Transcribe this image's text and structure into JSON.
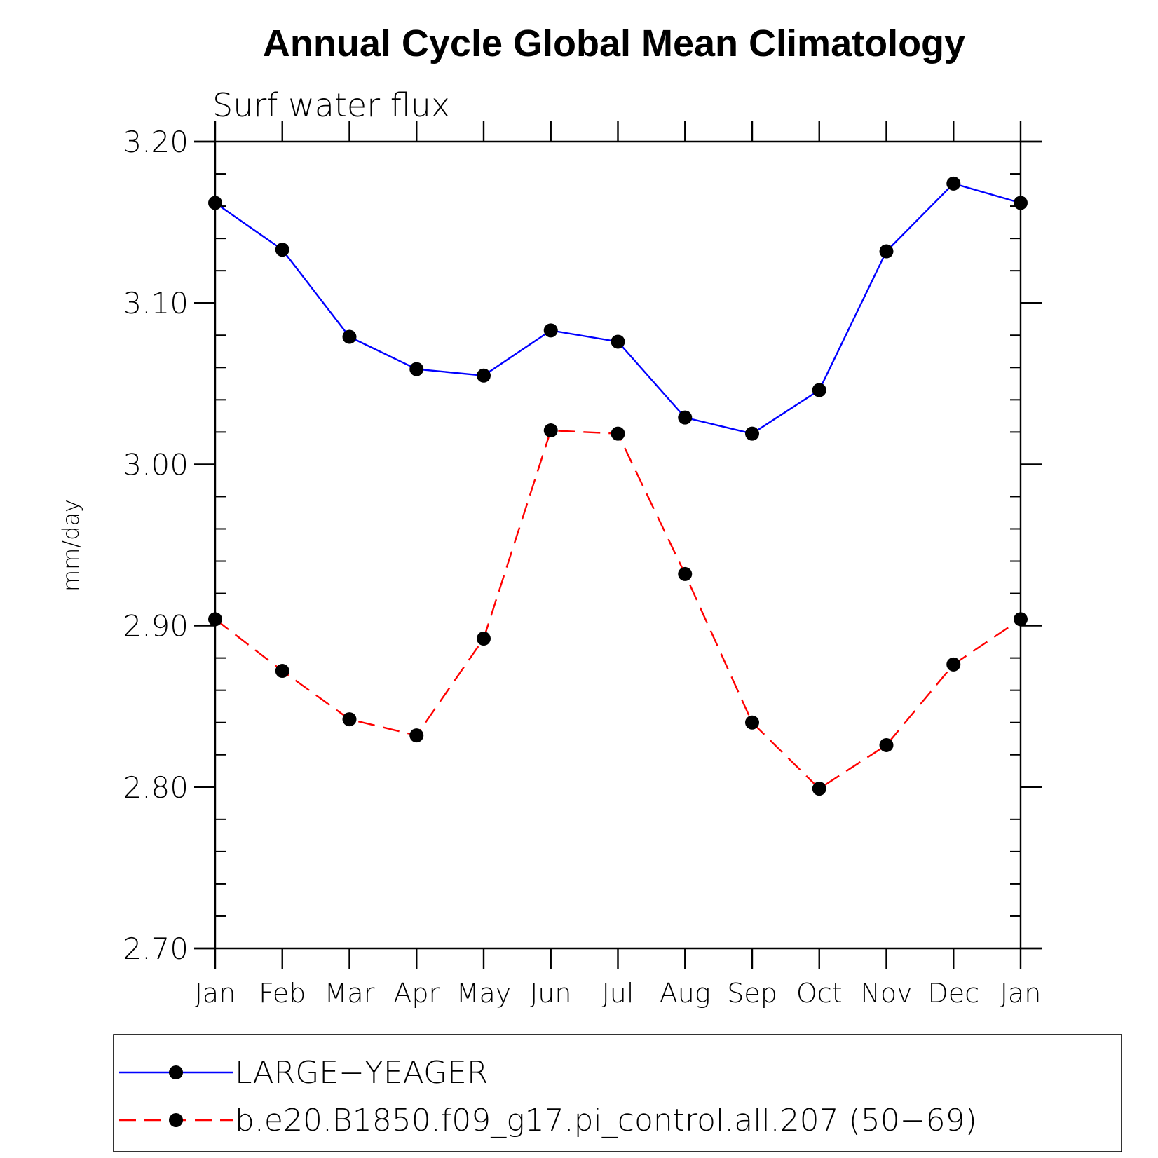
{
  "chart_data": {
    "type": "line",
    "title": "Annual Cycle Global Mean Climatology",
    "subtitle": "Surf water flux",
    "xlabel": "",
    "ylabel": "mm/day",
    "categories": [
      "Jan",
      "Feb",
      "Mar",
      "Apr",
      "May",
      "Jun",
      "Jul",
      "Aug",
      "Sep",
      "Oct",
      "Nov",
      "Dec",
      "Jan"
    ],
    "ylim": [
      2.7,
      3.2
    ],
    "yticks": [
      "2.70",
      "2.80",
      "2.90",
      "3.00",
      "3.10",
      "3.20"
    ],
    "grid": false,
    "legend_position": "bottom",
    "series": [
      {
        "name": "LARGE−YEAGER",
        "color": "#0000ff",
        "line_style": "solid",
        "marker": "filled-circle",
        "values": [
          3.162,
          3.133,
          3.079,
          3.059,
          3.055,
          3.083,
          3.076,
          3.029,
          3.019,
          3.046,
          3.132,
          3.174,
          3.162
        ]
      },
      {
        "name": "b.e20.B1850.f09_g17.pi_control.all.207 (50−69)",
        "color": "#ff0000",
        "line_style": "dashed",
        "marker": "filled-circle",
        "values": [
          2.904,
          2.872,
          2.842,
          2.832,
          2.892,
          3.021,
          3.019,
          2.932,
          2.84,
          2.799,
          2.826,
          2.876,
          2.904
        ]
      }
    ]
  }
}
